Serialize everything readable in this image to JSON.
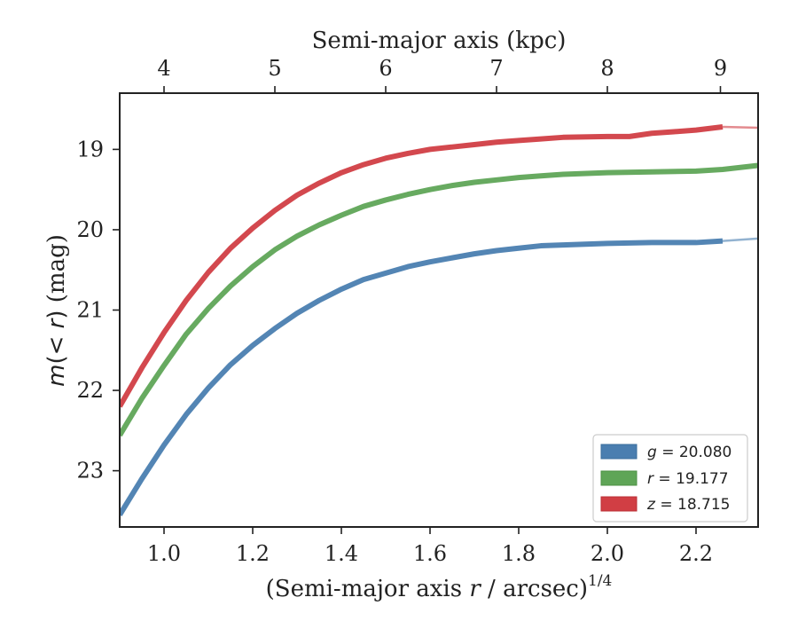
{
  "chart_data": {
    "type": "line",
    "xlabel_bottom": {
      "prefix": "(Semi-major axis ",
      "var": "r",
      "suffix": " / arcsec)",
      "exponent": "1/4"
    },
    "xlabel_top": "Semi-major axis (kpc)",
    "ylabel": {
      "var_prefix": "m",
      "var_mid": "(< ",
      "var_r": "r",
      "var_close": ")",
      "unit": " (mag)"
    },
    "xlim": [
      0.9,
      2.34
    ],
    "ylim": [
      23.7,
      18.3
    ],
    "y_inverted": true,
    "xticks": [
      1.0,
      1.2,
      1.4,
      1.6,
      1.8,
      2.0,
      2.2
    ],
    "xtick_labels": [
      "1.0",
      "1.2",
      "1.4",
      "1.6",
      "1.8",
      "2.0",
      "2.2"
    ],
    "yticks": [
      19,
      20,
      21,
      22,
      23
    ],
    "ytick_labels": [
      "19",
      "20",
      "21",
      "22",
      "23"
    ],
    "top_axis": {
      "ticks_kpc": [
        4,
        5,
        6,
        7,
        8,
        9
      ],
      "tick_labels": [
        "4",
        "5",
        "6",
        "7",
        "8",
        "9"
      ],
      "ticks_at_bottom_x": [
        1.0,
        1.25,
        1.5,
        1.75,
        2.0,
        2.255
      ]
    },
    "grid": false,
    "legend_position": "bottom-right",
    "series": [
      {
        "name": "g = 20.080",
        "band": "g",
        "value": "20.080",
        "color": "#4a7eb0",
        "x": [
          0.9,
          0.95,
          1.0,
          1.05,
          1.1,
          1.15,
          1.2,
          1.25,
          1.3,
          1.35,
          1.4,
          1.45,
          1.5,
          1.55,
          1.6,
          1.65,
          1.7,
          1.75,
          1.8,
          1.85,
          1.9,
          2.0,
          2.1,
          2.2,
          2.26
        ],
        "y": [
          23.55,
          23.1,
          22.68,
          22.3,
          21.97,
          21.68,
          21.44,
          21.23,
          21.04,
          20.88,
          20.74,
          20.62,
          20.54,
          20.46,
          20.4,
          20.35,
          20.3,
          20.26,
          20.23,
          20.2,
          20.19,
          20.17,
          20.16,
          20.16,
          20.14
        ],
        "extrapolation": {
          "x": [
            2.26,
            2.34
          ],
          "y": [
            20.14,
            20.11
          ]
        }
      },
      {
        "name": "r = 19.177",
        "band": "r",
        "value": "19.177",
        "color": "#5fa557",
        "x": [
          0.9,
          0.95,
          1.0,
          1.05,
          1.1,
          1.15,
          1.2,
          1.25,
          1.3,
          1.35,
          1.4,
          1.45,
          1.5,
          1.55,
          1.6,
          1.65,
          1.7,
          1.75,
          1.8,
          1.85,
          1.9,
          2.0,
          2.1,
          2.2,
          2.26,
          2.34
        ],
        "y": [
          22.56,
          22.1,
          21.69,
          21.3,
          20.98,
          20.7,
          20.46,
          20.25,
          20.08,
          19.94,
          19.82,
          19.71,
          19.63,
          19.56,
          19.5,
          19.45,
          19.41,
          19.38,
          19.35,
          19.33,
          19.31,
          19.29,
          19.28,
          19.27,
          19.25,
          19.2
        ]
      },
      {
        "name": "z = 18.715",
        "band": "z",
        "value": "18.715",
        "color": "#d13e44",
        "x": [
          0.9,
          0.95,
          1.0,
          1.05,
          1.1,
          1.15,
          1.2,
          1.25,
          1.3,
          1.35,
          1.4,
          1.45,
          1.5,
          1.55,
          1.6,
          1.65,
          1.7,
          1.75,
          1.8,
          1.85,
          1.9,
          2.0,
          2.05,
          2.1,
          2.15,
          2.2,
          2.26
        ],
        "y": [
          22.2,
          21.72,
          21.28,
          20.88,
          20.53,
          20.23,
          19.98,
          19.76,
          19.57,
          19.42,
          19.29,
          19.19,
          19.11,
          19.05,
          19.0,
          18.97,
          18.94,
          18.91,
          18.89,
          18.87,
          18.85,
          18.84,
          18.84,
          18.8,
          18.78,
          18.76,
          18.72
        ],
        "extrapolation": {
          "x": [
            2.26,
            2.34
          ],
          "y": [
            18.72,
            18.73
          ]
        }
      }
    ]
  }
}
